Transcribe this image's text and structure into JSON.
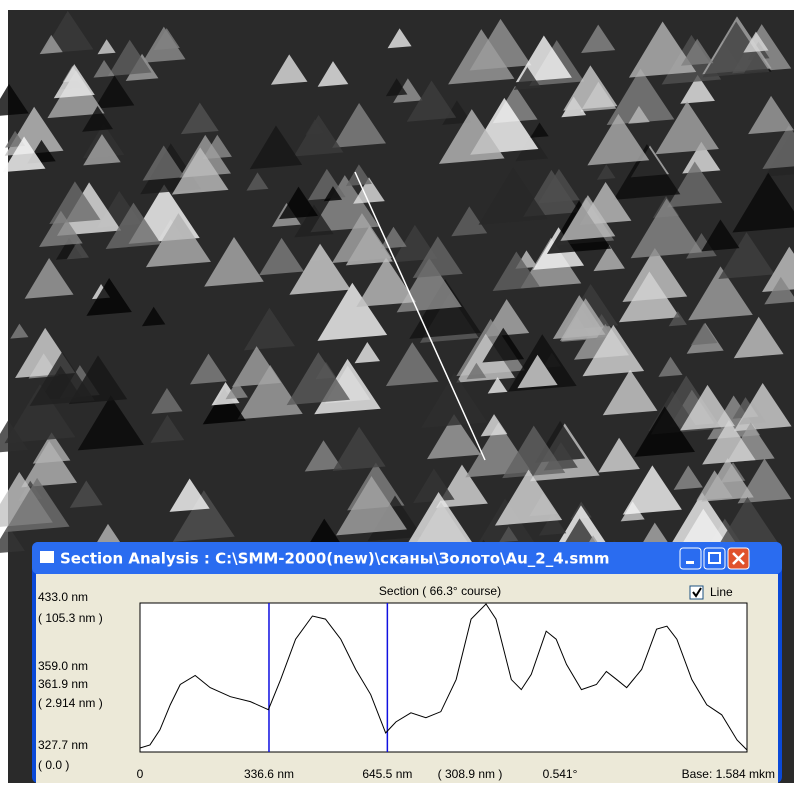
{
  "window": {
    "title": "Section Analysis : C:\\SMM-2000(new)\\сканы\\Золото\\Au_2_4.smm"
  },
  "section": {
    "title": "Section ( 66.3° course)",
    "checkbox": "Line",
    "y_top": {
      "value": 433.0,
      "label": "433.0 nm"
    },
    "y_top_delta": "( 105.3 nm )",
    "cursor_y1": "359.0 nm",
    "cursor_y2": "361.9 nm",
    "cursor_dy": "( 2.914 nm )",
    "y_bottom": {
      "value": 327.7,
      "label": "327.7 nm"
    },
    "y_bottom_delta": "( 0.0 )",
    "x_start": 0,
    "cursors": [
      {
        "value": 336.6,
        "label": "336.6 nm"
      },
      {
        "value": 645.5,
        "label": "645.5 nm"
      }
    ],
    "cursor_dx": "( 308.9 nm )",
    "angle": "0.541°",
    "x_end": {
      "value": 1584,
      "label": "Base: 1.584 mkm"
    },
    "profile": {
      "x": [
        0,
        26,
        52,
        79,
        105,
        144,
        183,
        236,
        288,
        335,
        367,
        406,
        450,
        484,
        524,
        563,
        602,
        641,
        668,
        707,
        746,
        785,
        825,
        864,
        903,
        929,
        969,
        995,
        1021,
        1060,
        1086,
        1113,
        1152,
        1191,
        1217,
        1244,
        1270,
        1309,
        1348,
        1375,
        1401,
        1440,
        1479,
        1518,
        1558,
        1584
      ],
      "y": [
        330.5,
        332.7,
        343.4,
        361.1,
        375.4,
        381.8,
        373.2,
        366.8,
        363.3,
        357.6,
        378.9,
        407.4,
        423.8,
        421.6,
        407.4,
        386.0,
        368.3,
        341.2,
        349.0,
        355.4,
        351.9,
        356.2,
        378.9,
        421.6,
        432.3,
        421.6,
        378.9,
        371.8,
        382.5,
        413.1,
        407.4,
        389.6,
        371.8,
        375.4,
        384.6,
        378.9,
        373.2,
        386.0,
        414.5,
        416.6,
        407.4,
        378.9,
        361.1,
        354.0,
        336.2,
        329.1
      ]
    }
  }
}
